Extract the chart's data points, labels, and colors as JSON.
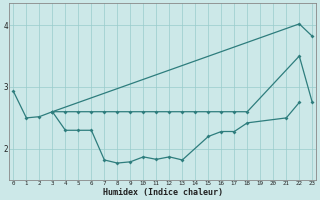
{
  "xlabel": "Humidex (Indice chaleur)",
  "line_color": "#2e7d7d",
  "bg_color": "#cce8e8",
  "grid_color": "#99cccc",
  "spine_color": "#888888",
  "ylim": [
    1.5,
    4.35
  ],
  "xlim": [
    -0.3,
    23.3
  ],
  "yticks": [
    2,
    3,
    4
  ],
  "xticks": [
    0,
    1,
    2,
    3,
    4,
    5,
    6,
    7,
    8,
    9,
    10,
    11,
    12,
    13,
    14,
    15,
    16,
    17,
    18,
    19,
    20,
    21,
    22,
    23
  ],
  "line1_x": [
    0,
    1,
    2,
    3,
    22,
    23
  ],
  "line1_y": [
    2.93,
    2.5,
    2.52,
    2.6,
    4.02,
    3.82
  ],
  "line2_x": [
    3,
    4,
    5,
    6,
    7,
    8,
    9,
    10,
    11,
    12,
    13,
    14,
    15,
    16,
    17,
    18,
    22,
    23
  ],
  "line2_y": [
    2.6,
    2.6,
    2.6,
    2.6,
    2.6,
    2.6,
    2.6,
    2.6,
    2.6,
    2.6,
    2.6,
    2.6,
    2.6,
    2.6,
    2.6,
    2.6,
    3.5,
    2.75
  ],
  "line3_x": [
    3,
    4,
    5,
    6,
    7,
    8,
    9,
    10,
    11,
    12,
    13,
    15,
    16,
    17,
    18,
    21,
    22
  ],
  "line3_y": [
    2.6,
    2.3,
    2.3,
    2.3,
    1.82,
    1.77,
    1.79,
    1.87,
    1.83,
    1.87,
    1.82,
    2.2,
    2.28,
    2.28,
    2.42,
    2.5,
    2.75
  ]
}
